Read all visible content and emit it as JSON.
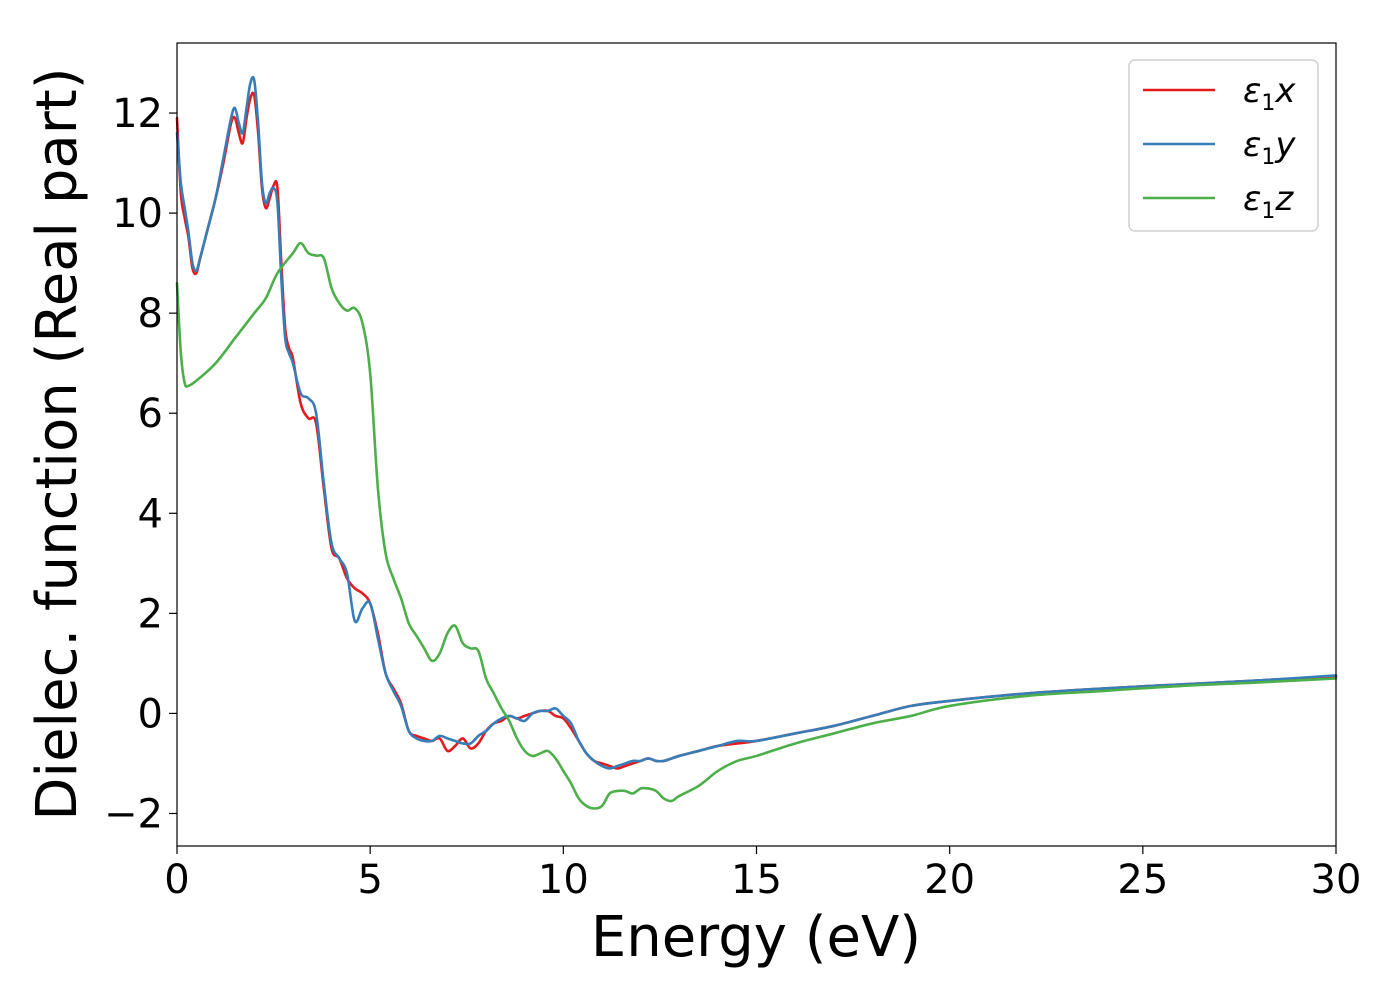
{
  "chart_data": {
    "type": "line",
    "title": "",
    "xlabel": "Energy (eV)",
    "ylabel": "Dielec. function (Real part)",
    "xlim": [
      0,
      30
    ],
    "ylim": [
      -2.65,
      13.4
    ],
    "xticks": [
      0,
      5,
      10,
      15,
      20,
      25,
      30
    ],
    "xtick_labels": [
      "0",
      "5",
      "10",
      "15",
      "20",
      "25",
      "30"
    ],
    "yticks": [
      -2,
      0,
      2,
      4,
      6,
      8,
      10,
      12
    ],
    "ytick_labels": [
      "−2",
      "0",
      "2",
      "4",
      "6",
      "8",
      "10",
      "12"
    ],
    "grid": false,
    "legend_position": "top-right",
    "series": [
      {
        "name": "ε1x",
        "label_main": "ε",
        "label_sub": "1",
        "label_axis": "x",
        "color": "#e41a1c",
        "x": [
          0,
          0.1,
          0.2,
          0.3,
          0.4,
          0.5,
          0.6,
          0.8,
          1.0,
          1.2,
          1.4,
          1.5,
          1.6,
          1.7,
          1.8,
          1.9,
          2.0,
          2.1,
          2.2,
          2.3,
          2.4,
          2.5,
          2.6,
          2.7,
          2.8,
          2.9,
          3.0,
          3.2,
          3.4,
          3.6,
          3.8,
          4.0,
          4.2,
          4.4,
          4.6,
          4.8,
          5.0,
          5.2,
          5.4,
          5.6,
          5.8,
          6.0,
          6.2,
          6.4,
          6.6,
          6.8,
          7.0,
          7.2,
          7.4,
          7.6,
          7.8,
          8.0,
          8.2,
          8.4,
          8.6,
          8.8,
          9.0,
          9.2,
          9.4,
          9.6,
          9.8,
          10.0,
          10.2,
          10.4,
          10.6,
          10.8,
          11.0,
          11.2,
          11.4,
          11.6,
          11.8,
          12.0,
          12.2,
          12.4,
          12.6,
          12.8,
          13.0,
          13.5,
          14.0,
          14.5,
          15.0,
          16.0,
          17.0,
          18.0,
          19.0,
          20.0,
          22.0,
          24.0,
          26.0,
          28.0,
          30.0
        ],
        "values": [
          11.9,
          10.4,
          9.9,
          9.5,
          8.9,
          8.8,
          9.1,
          9.7,
          10.3,
          11.0,
          11.8,
          11.9,
          11.6,
          11.4,
          11.9,
          12.3,
          12.35,
          11.6,
          10.5,
          10.1,
          10.3,
          10.55,
          10.5,
          9.0,
          7.7,
          7.3,
          7.1,
          6.2,
          5.9,
          5.8,
          4.5,
          3.3,
          3.1,
          2.7,
          2.5,
          2.4,
          2.2,
          1.6,
          0.8,
          0.5,
          0.2,
          -0.35,
          -0.45,
          -0.5,
          -0.55,
          -0.5,
          -0.75,
          -0.65,
          -0.5,
          -0.7,
          -0.6,
          -0.35,
          -0.2,
          -0.15,
          -0.05,
          -0.1,
          -0.05,
          0.0,
          0.05,
          0.05,
          -0.05,
          -0.1,
          -0.3,
          -0.55,
          -0.8,
          -0.95,
          -1.0,
          -1.05,
          -1.1,
          -1.05,
          -1.0,
          -0.95,
          -0.9,
          -0.95,
          -0.95,
          -0.9,
          -0.85,
          -0.75,
          -0.65,
          -0.6,
          -0.55,
          -0.4,
          -0.25,
          -0.05,
          0.15,
          0.25,
          0.4,
          0.5,
          0.58,
          0.66,
          0.74
        ]
      },
      {
        "name": "ε1y",
        "label_main": "ε",
        "label_sub": "1",
        "label_axis": "y",
        "color": "#377eb8",
        "x": [
          0,
          0.1,
          0.2,
          0.3,
          0.4,
          0.5,
          0.6,
          0.8,
          1.0,
          1.2,
          1.4,
          1.5,
          1.6,
          1.7,
          1.8,
          1.9,
          2.0,
          2.1,
          2.2,
          2.3,
          2.4,
          2.5,
          2.6,
          2.7,
          2.8,
          2.9,
          3.0,
          3.2,
          3.4,
          3.6,
          3.8,
          4.0,
          4.2,
          4.4,
          4.6,
          4.8,
          5.0,
          5.2,
          5.4,
          5.6,
          5.8,
          6.0,
          6.2,
          6.4,
          6.6,
          6.8,
          7.0,
          7.2,
          7.4,
          7.6,
          7.8,
          8.0,
          8.2,
          8.4,
          8.6,
          8.8,
          9.0,
          9.2,
          9.4,
          9.6,
          9.8,
          10.0,
          10.2,
          10.4,
          10.6,
          10.8,
          11.0,
          11.2,
          11.4,
          11.6,
          11.8,
          12.0,
          12.2,
          12.4,
          12.6,
          12.8,
          13.0,
          13.5,
          14.0,
          14.5,
          15.0,
          16.0,
          17.0,
          18.0,
          19.0,
          20.0,
          22.0,
          24.0,
          26.0,
          28.0,
          30.0
        ],
        "values": [
          11.6,
          10.6,
          10.1,
          9.6,
          9.0,
          8.85,
          9.1,
          9.7,
          10.3,
          11.1,
          11.9,
          12.1,
          11.8,
          11.6,
          12.1,
          12.6,
          12.65,
          11.8,
          10.6,
          10.2,
          10.4,
          10.5,
          10.2,
          8.7,
          7.5,
          7.2,
          7.0,
          6.4,
          6.3,
          6.0,
          4.6,
          3.4,
          3.1,
          2.8,
          1.85,
          2.1,
          2.2,
          1.5,
          0.8,
          0.45,
          0.15,
          -0.35,
          -0.5,
          -0.55,
          -0.55,
          -0.45,
          -0.5,
          -0.55,
          -0.6,
          -0.6,
          -0.45,
          -0.35,
          -0.2,
          -0.1,
          -0.05,
          -0.1,
          -0.15,
          0.0,
          0.05,
          0.05,
          0.1,
          -0.05,
          -0.2,
          -0.55,
          -0.8,
          -0.95,
          -1.05,
          -1.1,
          -1.05,
          -1.0,
          -0.95,
          -0.95,
          -0.9,
          -0.95,
          -0.95,
          -0.9,
          -0.85,
          -0.75,
          -0.65,
          -0.55,
          -0.55,
          -0.4,
          -0.25,
          -0.05,
          0.15,
          0.25,
          0.4,
          0.5,
          0.58,
          0.66,
          0.76
        ]
      },
      {
        "name": "ε1z",
        "label_main": "ε",
        "label_sub": "1",
        "label_axis": "z",
        "color": "#4daf4a",
        "x": [
          0,
          0.1,
          0.2,
          0.3,
          0.5,
          1.0,
          1.5,
          2.0,
          2.3,
          2.6,
          3.0,
          3.2,
          3.4,
          3.6,
          3.8,
          4.0,
          4.2,
          4.4,
          4.6,
          4.8,
          5.0,
          5.2,
          5.4,
          5.6,
          5.8,
          6.0,
          6.2,
          6.4,
          6.6,
          6.8,
          7.0,
          7.2,
          7.4,
          7.6,
          7.8,
          8.0,
          8.2,
          8.4,
          8.6,
          8.8,
          9.0,
          9.2,
          9.4,
          9.6,
          9.8,
          10.0,
          10.2,
          10.4,
          10.6,
          10.8,
          11.0,
          11.2,
          11.4,
          11.6,
          11.8,
          12.0,
          12.2,
          12.4,
          12.6,
          12.8,
          13.0,
          13.5,
          14.0,
          14.5,
          15.0,
          16.0,
          17.0,
          18.0,
          19.0,
          20.0,
          22.0,
          24.0,
          26.0,
          28.0,
          30.0
        ],
        "values": [
          8.6,
          7.2,
          6.6,
          6.55,
          6.65,
          7.0,
          7.5,
          8.0,
          8.3,
          8.8,
          9.2,
          9.4,
          9.2,
          9.15,
          9.1,
          8.5,
          8.2,
          8.05,
          8.1,
          7.8,
          6.8,
          4.5,
          3.2,
          2.7,
          2.3,
          1.8,
          1.55,
          1.3,
          1.05,
          1.2,
          1.6,
          1.75,
          1.4,
          1.3,
          1.25,
          0.7,
          0.4,
          0.1,
          -0.15,
          -0.5,
          -0.75,
          -0.85,
          -0.8,
          -0.75,
          -0.9,
          -1.15,
          -1.4,
          -1.7,
          -1.85,
          -1.9,
          -1.85,
          -1.6,
          -1.55,
          -1.55,
          -1.6,
          -1.5,
          -1.5,
          -1.55,
          -1.7,
          -1.75,
          -1.65,
          -1.45,
          -1.15,
          -0.95,
          -0.85,
          -0.6,
          -0.4,
          -0.2,
          -0.05,
          0.15,
          0.35,
          0.45,
          0.55,
          0.62,
          0.7
        ]
      }
    ]
  }
}
